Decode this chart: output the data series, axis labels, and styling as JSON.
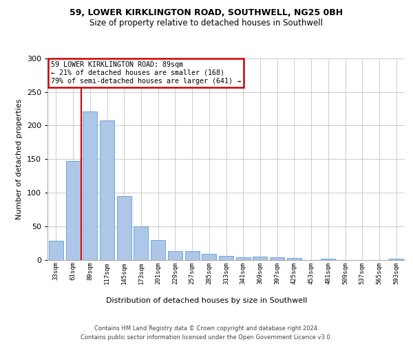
{
  "title1": "59, LOWER KIRKLINGTON ROAD, SOUTHWELL, NG25 0BH",
  "title2": "Size of property relative to detached houses in Southwell",
  "xlabel": "Distribution of detached houses by size in Southwell",
  "ylabel": "Number of detached properties",
  "footer1": "Contains HM Land Registry data © Crown copyright and database right 2024.",
  "footer2": "Contains public sector information licensed under the Open Government Licence v3.0.",
  "annotation_line1": "59 LOWER KIRKLINGTON ROAD: 89sqm",
  "annotation_line2": "← 21% of detached houses are smaller (168)",
  "annotation_line3": "79% of semi-detached houses are larger (641) →",
  "bar_labels": [
    "33sqm",
    "61sqm",
    "89sqm",
    "117sqm",
    "145sqm",
    "173sqm",
    "201sqm",
    "229sqm",
    "257sqm",
    "285sqm",
    "313sqm",
    "341sqm",
    "369sqm",
    "397sqm",
    "425sqm",
    "453sqm",
    "481sqm",
    "509sqm",
    "537sqm",
    "565sqm",
    "593sqm"
  ],
  "bar_values": [
    28,
    147,
    221,
    208,
    95,
    50,
    29,
    13,
    13,
    9,
    6,
    4,
    5,
    4,
    3,
    0,
    2,
    0,
    0,
    0,
    2
  ],
  "property_bin_index": 2,
  "bar_color": "#aec6e8",
  "bar_edge_color": "#5a9fd4",
  "highlight_line_color": "#cc0000",
  "annotation_box_color": "#cc0000",
  "background_color": "#ffffff",
  "grid_color": "#cccccc",
  "ylim": [
    0,
    300
  ],
  "yticks": [
    0,
    50,
    100,
    150,
    200,
    250,
    300
  ]
}
